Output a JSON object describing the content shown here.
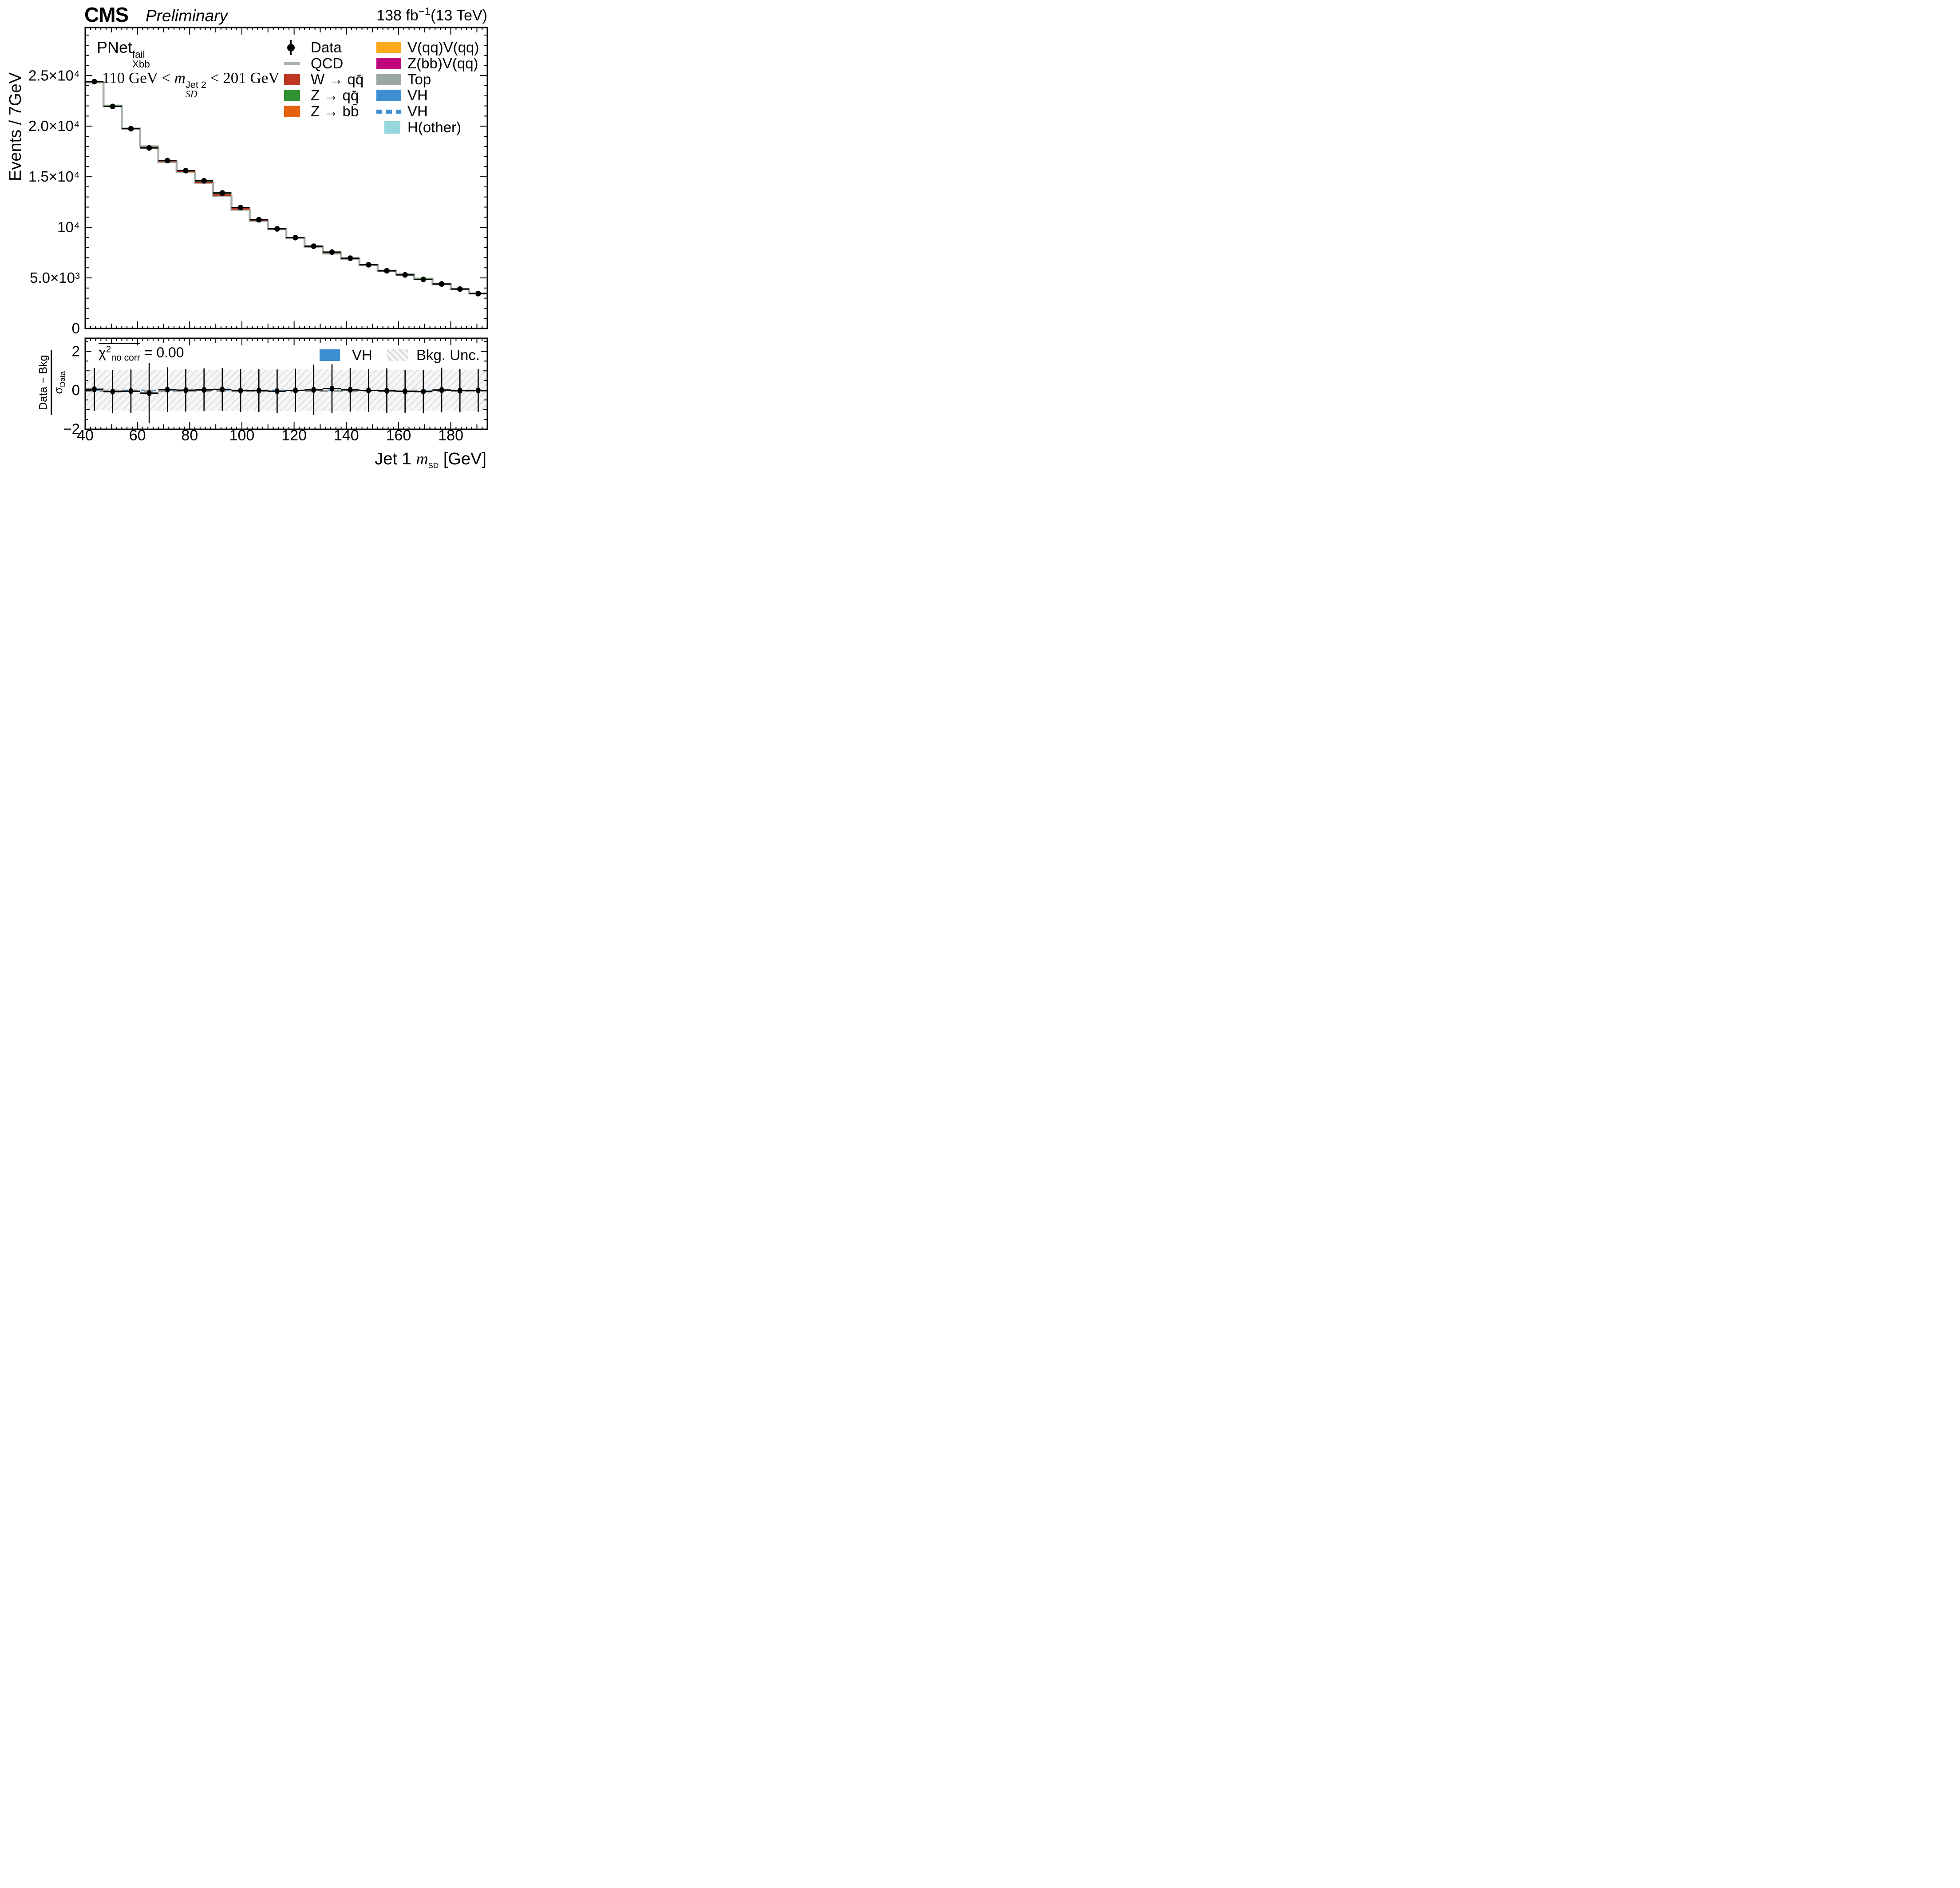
{
  "header": {
    "experiment": "CMS",
    "status": "Preliminary",
    "lumi_main": "138 fb",
    "lumi_sup": "−1",
    "lumi_energy": "(13 TeV)"
  },
  "panel_labels": {
    "pnet_base": "PNet",
    "pnet_sup": "fail",
    "pnet_sub": "Xbb",
    "window_pre": "110 GeV < ",
    "window_var": "m",
    "window_sup": "Jet 2",
    "window_sub": "SD",
    "window_post": " < 201 GeV",
    "chi2_base": "χ",
    "chi2_exp": "2",
    "chi2_sub": "no corr",
    "chi2_rhs": " = 0.00"
  },
  "axis_titles": {
    "y_main": "Events / 7GeV",
    "x_pre": "Jet 1 ",
    "x_var": "m",
    "x_sub": "SD",
    "x_post": " [GeV]",
    "ratio_num": "Data − Bkg",
    "ratio_den_sym": "σ",
    "ratio_den_sub": "Data"
  },
  "colors": {
    "qcd": "#A7B1AC",
    "w_qq": "#BE3522",
    "z_qq": "#2E9232",
    "z_bb": "#E5610F",
    "vv": "#FBA919",
    "zbbv": "#C0067E",
    "top": "#9BA8A2",
    "vh": "#3D8ED3",
    "h_other": "#97D7DC",
    "data": "#000000",
    "ratio_dash_gray": "#999FA0",
    "hatch_line": "#D7D7D7"
  },
  "legend_main": {
    "col1": [
      {
        "label": "Data",
        "swatch": "data",
        "color": "#000000"
      },
      {
        "label": "QCD",
        "swatch": "line",
        "color": "#A7B1AC"
      },
      {
        "label": "W → qq̄",
        "swatch": "box",
        "color": "#BE3522"
      },
      {
        "label": "Z → qq̄",
        "swatch": "box",
        "color": "#2E9232"
      },
      {
        "label": "Z → bb̄",
        "swatch": "box",
        "color": "#E5610F"
      }
    ],
    "col2": [
      {
        "label": "V(qq)V(qq)",
        "swatch": "box",
        "color": "#FBA919"
      },
      {
        "label": "Z(bb)V(qq)",
        "swatch": "box",
        "color": "#C0067E"
      },
      {
        "label": "Top",
        "swatch": "box",
        "color": "#9BA8A2"
      },
      {
        "label": "VH",
        "swatch": "box",
        "color": "#3D8ED3"
      },
      {
        "label": "VH",
        "swatch": "dashes",
        "color": "#3D8ED3"
      },
      {
        "label": "H(other)",
        "swatch": "box-sm",
        "color": "#97D7DC"
      }
    ]
  },
  "legend_ratio": [
    {
      "label": "VH",
      "swatch": "box",
      "color": "#3D8ED3"
    },
    {
      "label": "Bkg. Unc.",
      "swatch": "hatch",
      "color": "#D7D7D7"
    }
  ],
  "chart_data": {
    "type": "bar",
    "subtype": "stacked-histogram-with-ratio",
    "title": "CMS Preliminary, PNetXbb fail, 110 GeV < mSD Jet2 < 201 GeV",
    "xlabel": "Jet 1 mSD [GeV]",
    "ylabel": "Events / 7GeV",
    "ratio_ylabel": "(Data − Bkg) / σData",
    "xlim": [
      40,
      194
    ],
    "ylim_main": [
      0,
      29750
    ],
    "ylim_ratio": [
      -2.01,
      2.674
    ],
    "bin_width": 7,
    "x_major_tick_labels": [
      {
        "v": 40,
        "label": "40"
      },
      {
        "v": 60,
        "label": "60"
      },
      {
        "v": 80,
        "label": "80"
      },
      {
        "v": 100,
        "label": "100"
      },
      {
        "v": 120,
        "label": "120"
      },
      {
        "v": 140,
        "label": "140"
      },
      {
        "v": 160,
        "label": "160"
      },
      {
        "v": 180,
        "label": "180"
      }
    ],
    "y_main_tick_labels": [
      {
        "v": 0,
        "label": "0"
      },
      {
        "v": 5000,
        "label": "5.0×10³"
      },
      {
        "v": 10000,
        "label": "10⁴"
      },
      {
        "v": 15000,
        "label": "1.5×10⁴"
      },
      {
        "v": 20000,
        "label": "2.0×10⁴"
      },
      {
        "v": 25000,
        "label": "2.5×10⁴"
      }
    ],
    "y_ratio_tick_labels": [
      {
        "v": -2,
        "label": "−2"
      },
      {
        "v": 0,
        "label": "0"
      },
      {
        "v": 2,
        "label": "2"
      }
    ],
    "ratio_baseline_gray": -0.04,
    "ratio_baseline_blue": 0.0,
    "bins": [
      {
        "lo": 40,
        "hi": 47,
        "data": 24400,
        "bkg": 24350,
        "w_qq": 20,
        "z_qq": 5,
        "ratio": 0.05,
        "err": 1.1,
        "band": 1.03
      },
      {
        "lo": 47,
        "hi": 54,
        "data": 21950,
        "bkg": 22050,
        "w_qq": 20,
        "z_qq": 5,
        "ratio": -0.07,
        "err": 1.12,
        "band": 1.04
      },
      {
        "lo": 54,
        "hi": 61,
        "data": 19750,
        "bkg": 19800,
        "w_qq": 25,
        "z_qq": 8,
        "ratio": -0.05,
        "err": 1.12,
        "band": 1.05
      },
      {
        "lo": 61,
        "hi": 68,
        "data": 17850,
        "bkg": 18050,
        "w_qq": 40,
        "z_qq": 10,
        "ratio": -0.15,
        "err": 1.55,
        "band": 1.06
      },
      {
        "lo": 68,
        "hi": 75,
        "data": 16600,
        "bkg": 16550,
        "w_qq": 90,
        "z_qq": 20,
        "ratio": 0.03,
        "err": 1.15,
        "band": 1.05
      },
      {
        "lo": 75,
        "hi": 82,
        "data": 15600,
        "bkg": 15600,
        "w_qq": 110,
        "z_qq": 30,
        "ratio": 0.0,
        "err": 1.1,
        "band": 1.04
      },
      {
        "lo": 82,
        "hi": 89,
        "data": 14600,
        "bkg": 14570,
        "w_qq": 140,
        "z_qq": 60,
        "ratio": 0.02,
        "err": 1.1,
        "band": 1.05
      },
      {
        "lo": 89,
        "hi": 96,
        "data": 13400,
        "bkg": 13340,
        "w_qq": 170,
        "z_qq": 75,
        "ratio": 0.04,
        "err": 1.1,
        "band": 1.06
      },
      {
        "lo": 96,
        "hi": 103,
        "data": 11950,
        "bkg": 11970,
        "w_qq": 155,
        "z_qq": 70,
        "ratio": -0.02,
        "err": 1.1,
        "band": 1.05
      },
      {
        "lo": 103,
        "hi": 110,
        "data": 10750,
        "bkg": 10780,
        "w_qq": 100,
        "z_qq": 45,
        "ratio": -0.02,
        "err": 1.1,
        "band": 1.04
      },
      {
        "lo": 110,
        "hi": 117,
        "data": 9850,
        "bkg": 9920,
        "w_qq": 70,
        "z_qq": 35,
        "ratio": -0.05,
        "err": 1.12,
        "band": 1.05
      },
      {
        "lo": 117,
        "hi": 124,
        "data": 8980,
        "bkg": 9000,
        "w_qq": 50,
        "z_qq": 25,
        "ratio": -0.01,
        "err": 1.12,
        "band": 1.07
      },
      {
        "lo": 124,
        "hi": 131,
        "data": 8140,
        "bkg": 8120,
        "w_qq": 40,
        "z_qq": 20,
        "ratio": 0.02,
        "err": 1.3,
        "band": 1.08
      },
      {
        "lo": 131,
        "hi": 138,
        "data": 7550,
        "bkg": 7460,
        "w_qq": 30,
        "z_qq": 15,
        "ratio": 0.08,
        "err": 1.25,
        "band": 1.06
      },
      {
        "lo": 138,
        "hi": 145,
        "data": 6950,
        "bkg": 6920,
        "w_qq": 25,
        "z_qq": 12,
        "ratio": 0.02,
        "err": 1.12,
        "band": 1.05
      },
      {
        "lo": 145,
        "hi": 152,
        "data": 6300,
        "bkg": 6310,
        "w_qq": 20,
        "z_qq": 10,
        "ratio": -0.01,
        "err": 1.1,
        "band": 1.04
      },
      {
        "lo": 152,
        "hi": 159,
        "data": 5700,
        "bkg": 5740,
        "w_qq": 18,
        "z_qq": 8,
        "ratio": -0.03,
        "err": 1.15,
        "band": 1.05
      },
      {
        "lo": 159,
        "hi": 166,
        "data": 5300,
        "bkg": 5370,
        "w_qq": 15,
        "z_qq": 8,
        "ratio": -0.06,
        "err": 1.1,
        "band": 1.06
      },
      {
        "lo": 166,
        "hi": 173,
        "data": 4850,
        "bkg": 4940,
        "w_qq": 12,
        "z_qq": 6,
        "ratio": -0.07,
        "err": 1.12,
        "band": 1.05
      },
      {
        "lo": 173,
        "hi": 180,
        "data": 4400,
        "bkg": 4390,
        "w_qq": 10,
        "z_qq": 5,
        "ratio": 0.01,
        "err": 1.15,
        "band": 1.04
      },
      {
        "lo": 180,
        "hi": 187,
        "data": 3900,
        "bkg": 3930,
        "w_qq": 8,
        "z_qq": 4,
        "ratio": -0.02,
        "err": 1.12,
        "band": 1.05
      },
      {
        "lo": 187,
        "hi": 194,
        "data": 3450,
        "bkg": 3480,
        "w_qq": 8,
        "z_qq": 4,
        "ratio": -0.01,
        "err": 1.1,
        "band": 1.05
      }
    ]
  }
}
